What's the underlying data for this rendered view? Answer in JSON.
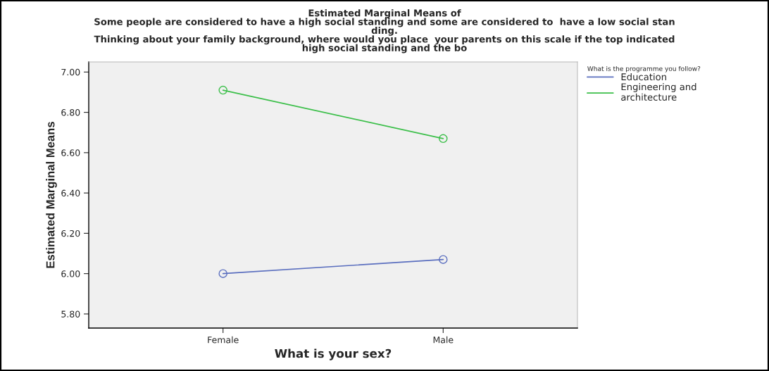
{
  "chart_data": {
    "type": "line",
    "title": "Estimated Marginal Means of\nSome people are considered to have a high social standing and some are considered to  have a low social stan\nding.\nThinking about your family background, where would you place  your parents on this scale if the top indicated\nhigh social standing and the bo",
    "xlabel": "What is your sex?",
    "ylabel": "Estimated Marginal Means",
    "legend_title": "What is the programme you follow?",
    "categories": [
      "Female",
      "Male"
    ],
    "series": [
      {
        "name": "Education",
        "color": "#5b6fbf",
        "values": [
          6.0,
          6.07
        ]
      },
      {
        "name": "Engineering and\narchitecture",
        "color": "#3cbf4a",
        "values": [
          6.91,
          6.67
        ]
      }
    ],
    "ylim": [
      5.73,
      7.05
    ],
    "yticks": [
      {
        "value": 5.8,
        "label": "5.80"
      },
      {
        "value": 6.0,
        "label": "6.00"
      },
      {
        "value": 6.2,
        "label": "6.20"
      },
      {
        "value": 6.4,
        "label": "6.40"
      },
      {
        "value": 6.6,
        "label": "6.60"
      },
      {
        "value": 6.8,
        "label": "6.80"
      },
      {
        "value": 7.0,
        "label": "7.00"
      }
    ],
    "grid": false,
    "legend": "top right",
    "marker": "circle",
    "line_style": "solid"
  }
}
